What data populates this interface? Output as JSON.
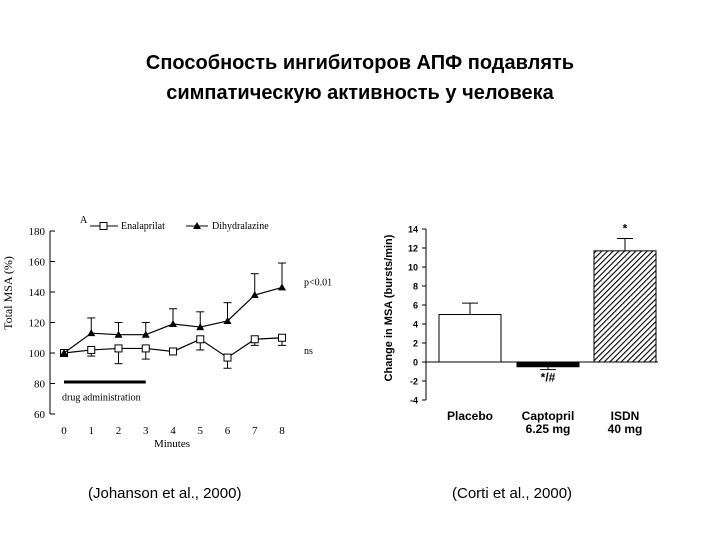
{
  "slide": {
    "title_line1": "Способность ингибиторов АПФ подавлять",
    "title_line2": "симпатическую активность у человека",
    "caption_left": "(Johanson et al., 2000)",
    "caption_right": "(Corti et al., 2000)"
  },
  "chart_data": [
    {
      "type": "line",
      "panel_label": "A",
      "xlabel": "Minutes",
      "ylabel": "Total MSA (%)",
      "x": [
        0,
        1,
        2,
        3,
        4,
        5,
        6,
        7,
        8
      ],
      "xlim": [
        0,
        8
      ],
      "ylim": [
        60,
        180
      ],
      "y_ticks": [
        60,
        80,
        100,
        120,
        140,
        160,
        180
      ],
      "series": [
        {
          "name": "Enalaprilat",
          "marker": "open-square",
          "values": [
            100,
            102,
            103,
            103,
            101,
            109,
            97,
            109,
            110
          ],
          "errors": [
            0,
            4,
            10,
            7,
            0,
            7,
            7,
            4,
            5
          ],
          "end_label": "ns"
        },
        {
          "name": "Dihydralazine",
          "marker": "filled-triangle",
          "values": [
            100,
            113,
            112,
            112,
            119,
            117,
            121,
            138,
            143
          ],
          "errors": [
            0,
            10,
            8,
            8,
            10,
            10,
            12,
            14,
            16
          ],
          "end_label": "p<0.01"
        }
      ],
      "annotation": "drug administration",
      "annotation_x_range": [
        0,
        3
      ],
      "legend_position": "top",
      "grid": false
    },
    {
      "type": "bar",
      "ylabel": "Change in MSA (bursts/min)",
      "categories": [
        "Placebo",
        "Captopril 6.25 mg",
        "ISDN 40 mg"
      ],
      "category_lines": [
        [
          "Placebo"
        ],
        [
          "Captopril",
          "6.25 mg"
        ],
        [
          "ISDN",
          "40 mg"
        ]
      ],
      "values": [
        5.0,
        -0.5,
        11.7
      ],
      "errors": [
        1.2,
        0.3,
        1.3
      ],
      "bar_styles": [
        "white",
        "black",
        "hatched"
      ],
      "significance": [
        "",
        "*/#",
        "*"
      ],
      "ylim": [
        -4,
        14
      ],
      "y_ticks": [
        -4,
        -2,
        0,
        2,
        4,
        6,
        8,
        10,
        12,
        14
      ],
      "grid": false
    }
  ]
}
